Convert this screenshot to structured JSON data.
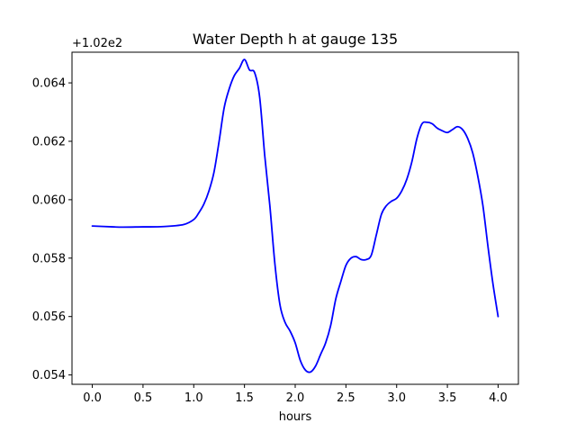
{
  "chart_data": {
    "type": "line",
    "title": "Water Depth h at gauge 135",
    "xlabel": "hours",
    "ylabel": "",
    "offset_label": "+1.02e2",
    "xlim": [
      -0.2,
      4.2
    ],
    "ylim": [
      0.05368,
      0.06505
    ],
    "xticks": [
      {
        "value": 0.0,
        "label": "0.0"
      },
      {
        "value": 0.5,
        "label": "0.5"
      },
      {
        "value": 1.0,
        "label": "1.0"
      },
      {
        "value": 1.5,
        "label": "1.5"
      },
      {
        "value": 2.0,
        "label": "2.0"
      },
      {
        "value": 2.5,
        "label": "2.5"
      },
      {
        "value": 3.0,
        "label": "3.0"
      },
      {
        "value": 3.5,
        "label": "3.5"
      },
      {
        "value": 4.0,
        "label": "4.0"
      }
    ],
    "yticks": [
      {
        "value": 0.054,
        "label": "0.054"
      },
      {
        "value": 0.056,
        "label": "0.056"
      },
      {
        "value": 0.058,
        "label": "0.058"
      },
      {
        "value": 0.06,
        "label": "0.060"
      },
      {
        "value": 0.062,
        "label": "0.062"
      },
      {
        "value": 0.064,
        "label": "0.064"
      }
    ],
    "grid": false,
    "series": [
      {
        "color": "#0000ff",
        "x": [
          0.0,
          0.2,
          0.3,
          0.5,
          0.7,
          0.9,
          1.0,
          1.05,
          1.1,
          1.15,
          1.2,
          1.25,
          1.3,
          1.35,
          1.4,
          1.45,
          1.5,
          1.55,
          1.6,
          1.65,
          1.7,
          1.75,
          1.8,
          1.85,
          1.9,
          1.95,
          2.0,
          2.05,
          2.1,
          2.15,
          2.2,
          2.25,
          2.3,
          2.35,
          2.4,
          2.45,
          2.5,
          2.55,
          2.6,
          2.65,
          2.7,
          2.75,
          2.8,
          2.85,
          2.9,
          2.95,
          3.0,
          3.05,
          3.1,
          3.15,
          3.2,
          3.25,
          3.3,
          3.35,
          3.4,
          3.45,
          3.5,
          3.55,
          3.6,
          3.65,
          3.7,
          3.75,
          3.8,
          3.85,
          3.9,
          3.95,
          4.0
        ],
        "y": [
          0.0591,
          0.05907,
          0.05906,
          0.05907,
          0.05908,
          0.05915,
          0.05932,
          0.05955,
          0.05985,
          0.0603,
          0.06095,
          0.062,
          0.06315,
          0.0638,
          0.06425,
          0.0645,
          0.0648,
          0.06444,
          0.06435,
          0.0635,
          0.0615,
          0.0598,
          0.0578,
          0.0564,
          0.0558,
          0.0555,
          0.0551,
          0.0545,
          0.05417,
          0.0541,
          0.0543,
          0.0547,
          0.0551,
          0.0557,
          0.0566,
          0.0572,
          0.05775,
          0.058,
          0.05805,
          0.05795,
          0.05795,
          0.0581,
          0.0588,
          0.0595,
          0.0598,
          0.05995,
          0.06005,
          0.0603,
          0.0607,
          0.0613,
          0.0621,
          0.0626,
          0.06265,
          0.0626,
          0.06245,
          0.06236,
          0.0623,
          0.0624,
          0.0625,
          0.0624,
          0.0621,
          0.0616,
          0.0608,
          0.0598,
          0.0584,
          0.0571,
          0.056
        ]
      }
    ]
  }
}
